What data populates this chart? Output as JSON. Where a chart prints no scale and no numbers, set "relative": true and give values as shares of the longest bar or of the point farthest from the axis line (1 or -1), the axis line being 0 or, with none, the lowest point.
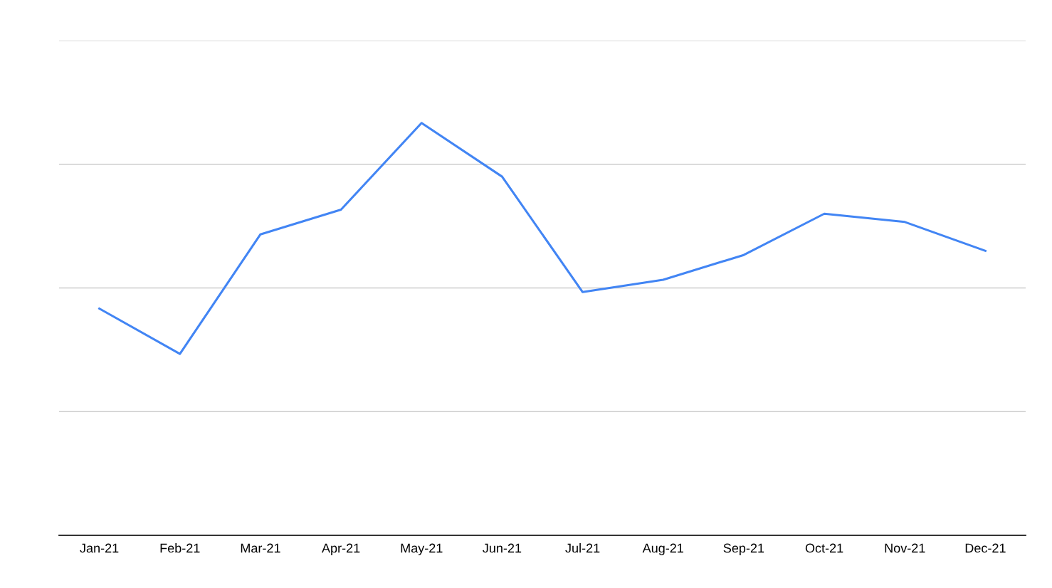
{
  "chart_data": {
    "type": "line",
    "relative": true,
    "grid": "y",
    "marker": "none",
    "line_style": "solid",
    "categories": [
      "Jan-21",
      "Feb-21",
      "Mar-21",
      "Apr-21",
      "May-21",
      "Jun-21",
      "Jul-21",
      "Aug-21",
      "Sep-21",
      "Oct-21",
      "Nov-21",
      "Dec-21"
    ],
    "series": [
      {
        "color": "#4285f4",
        "values": [
          0.55,
          0.44,
          0.73,
          0.79,
          1,
          0.87,
          0.59,
          0.62,
          0.68,
          0.78,
          0.76,
          0.69
        ]
      }
    ]
  }
}
